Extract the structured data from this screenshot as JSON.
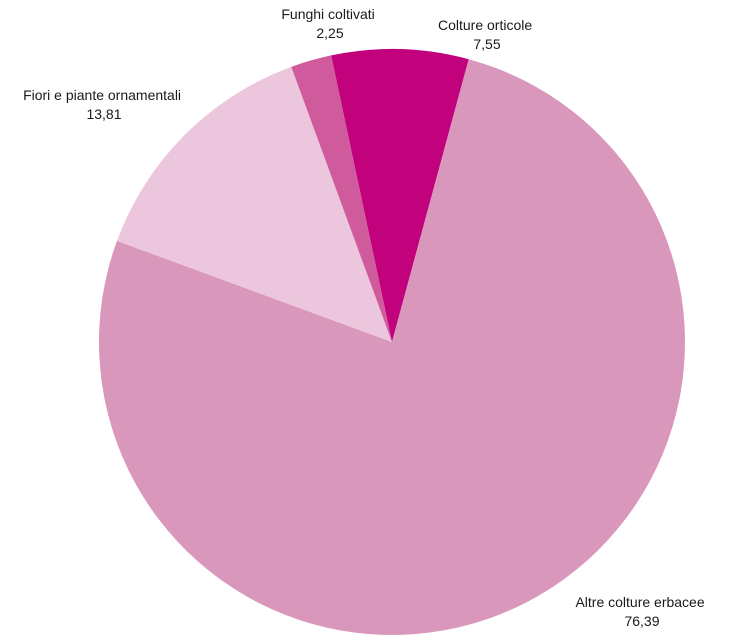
{
  "chart_data": {
    "type": "pie",
    "title": "",
    "start_angle_deg": -12,
    "direction": "clockwise",
    "slices": [
      {
        "label": "Colture orticole",
        "value": 7.55,
        "display": "7,55",
        "color": "#c2027d"
      },
      {
        "label": "Altre colture erbacee",
        "value": 76.39,
        "display": "76,39",
        "color": "#d897bb"
      },
      {
        "label": "Fiori e piante ornamentali",
        "value": 13.81,
        "display": "13,81",
        "color": "#ecc6dc"
      },
      {
        "label": "Funghi coltivati",
        "value": 2.25,
        "display": "2,25",
        "color": "#cf5a9c"
      }
    ]
  }
}
